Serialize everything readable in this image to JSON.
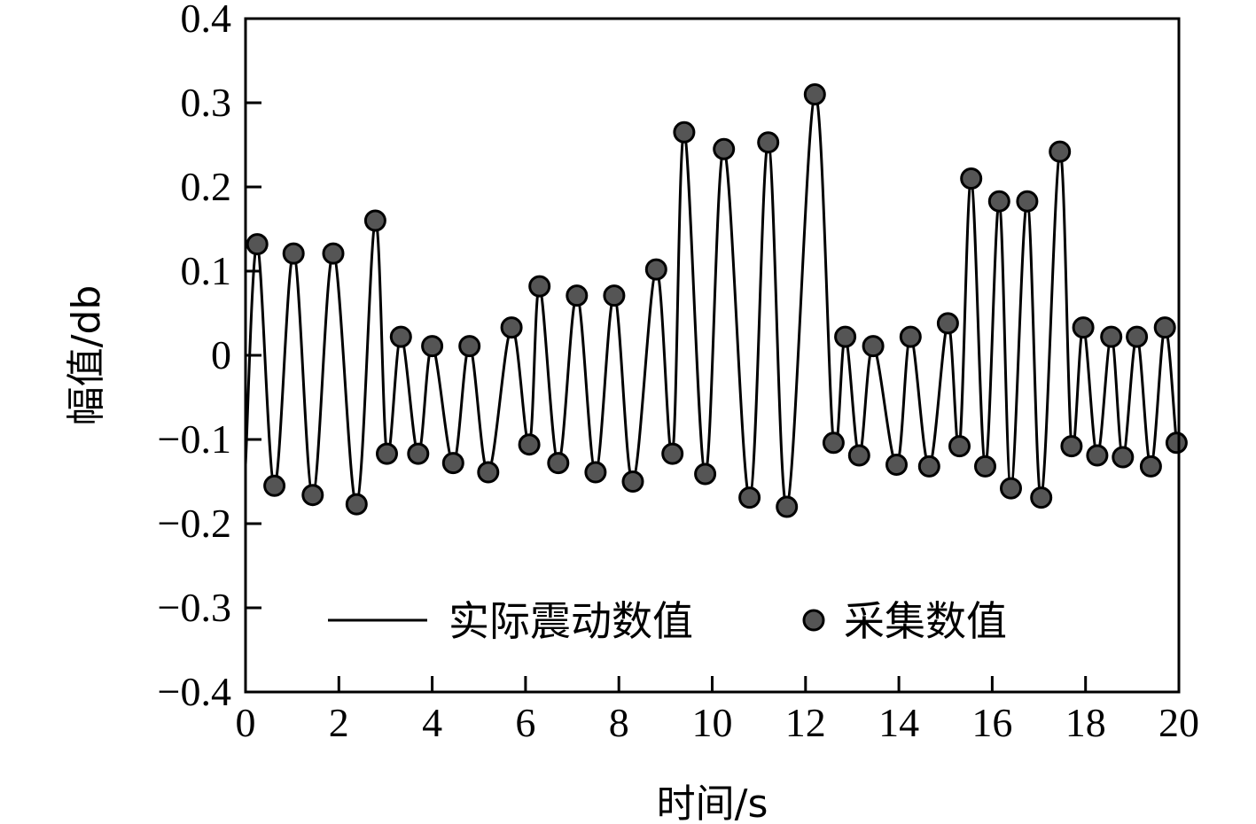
{
  "chart_data": {
    "type": "line",
    "xlabel": "时间/s",
    "ylabel": "幅值/db",
    "xlim": [
      0,
      20
    ],
    "ylim": [
      -0.4,
      0.4
    ],
    "xticks": [
      0,
      2,
      4,
      6,
      8,
      10,
      12,
      14,
      16,
      18,
      20
    ],
    "yticks": [
      0.4,
      0.3,
      0.2,
      0.1,
      0,
      -0.1,
      -0.2,
      -0.3,
      -0.4
    ],
    "ytick_labels": [
      "0.4",
      "0.3",
      "0.2",
      "0.1",
      "0",
      "−0.1",
      "−0.2",
      "−0.3",
      "−0.4"
    ],
    "grid": false,
    "legend_position": "bottom-center",
    "series": [
      {
        "name": "实际震动数值",
        "style": "line",
        "color": "#000000"
      },
      {
        "name": "采集数值",
        "style": "marker",
        "color": "#555555",
        "x": [
          0.25,
          0.62,
          1.03,
          1.44,
          1.88,
          2.38,
          2.78,
          3.03,
          3.33,
          3.7,
          4.0,
          4.45,
          4.8,
          5.2,
          5.7,
          6.08,
          6.3,
          6.7,
          7.1,
          7.5,
          7.9,
          8.3,
          8.8,
          9.15,
          9.4,
          9.85,
          10.25,
          10.8,
          11.2,
          11.6,
          12.2,
          12.6,
          12.85,
          13.15,
          13.45,
          13.95,
          14.25,
          14.65,
          15.05,
          15.3,
          15.55,
          15.85,
          16.15,
          16.4,
          16.75,
          17.05,
          17.45,
          17.7,
          17.95,
          18.25,
          18.55,
          18.8,
          19.1,
          19.4,
          19.7,
          19.95
        ],
        "y": [
          0.132,
          -0.155,
          0.121,
          -0.166,
          0.121,
          -0.177,
          0.16,
          -0.117,
          0.022,
          -0.117,
          0.011,
          -0.128,
          0.011,
          -0.139,
          0.033,
          -0.106,
          0.082,
          -0.128,
          0.071,
          -0.139,
          0.071,
          -0.15,
          0.102,
          -0.117,
          0.265,
          -0.141,
          0.245,
          -0.169,
          0.253,
          -0.18,
          0.31,
          -0.104,
          0.022,
          -0.119,
          0.011,
          -0.13,
          0.022,
          -0.132,
          0.038,
          -0.108,
          0.21,
          -0.132,
          0.183,
          -0.158,
          0.183,
          -0.169,
          0.242,
          -0.108,
          0.033,
          -0.119,
          0.022,
          -0.121,
          0.022,
          -0.132,
          0.033,
          -0.104
        ]
      }
    ]
  }
}
